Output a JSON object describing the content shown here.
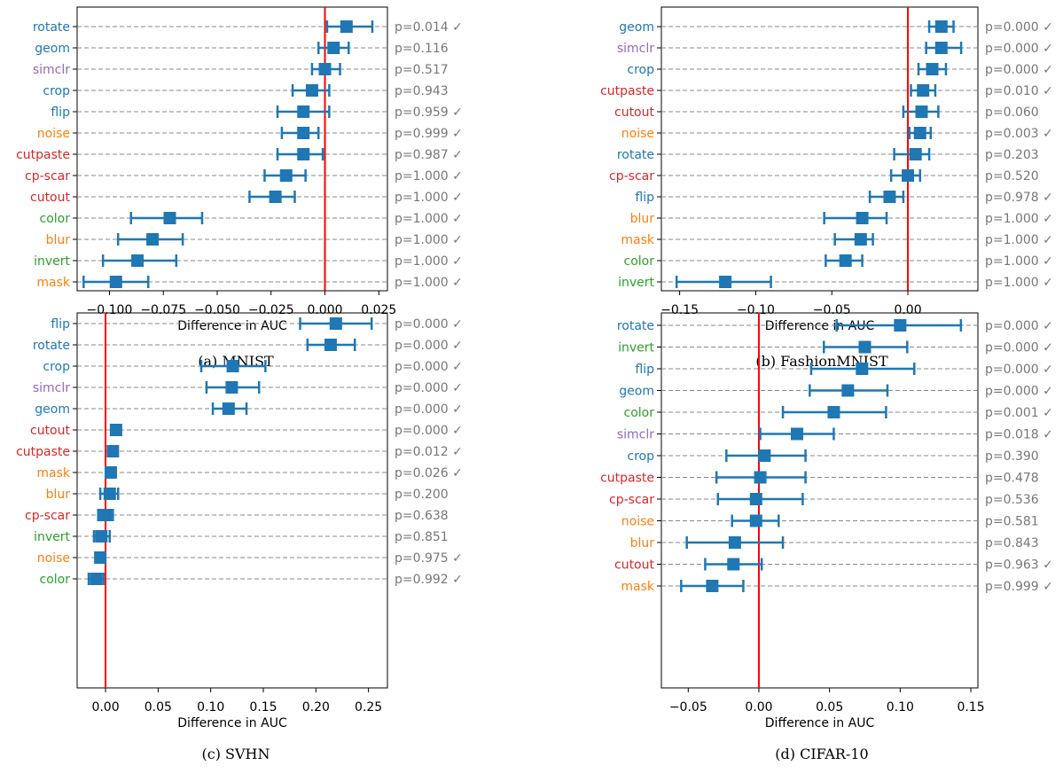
{
  "colors": {
    "marker": "#1f77b4",
    "zero_line": "#ff0000",
    "guide": "#888888",
    "geometric": "#1f77b4",
    "photometric": "#2ca02c",
    "local": "#d62728",
    "noise_like": "#ff7f0e",
    "contrastive": "#9467bd",
    "pvalue_text": "#777777"
  },
  "chart_data": [
    {
      "type": "errorbar",
      "caption": "(a) MNIST",
      "xlabel": "Difference in AUC",
      "xlim": [
        -0.115,
        0.029
      ],
      "xticks": [
        -0.1,
        -0.075,
        -0.05,
        -0.025,
        0.0,
        0.025
      ],
      "xtick_labels": [
        "−0.100",
        "−0.075",
        "−0.050",
        "−0.025",
        "0.000",
        "0.025"
      ],
      "rows": [
        {
          "label": "rotate",
          "color": "#1f77b4",
          "value": 0.01,
          "low": 0.001,
          "high": 0.022,
          "p": "p=0.014 ✓"
        },
        {
          "label": "geom",
          "color": "#1f77b4",
          "value": 0.004,
          "low": -0.003,
          "high": 0.011,
          "p": "p=0.116"
        },
        {
          "label": "simclr",
          "color": "#9467bd",
          "value": 0.0,
          "low": -0.006,
          "high": 0.007,
          "p": "p=0.517"
        },
        {
          "label": "crop",
          "color": "#1f77b4",
          "value": -0.006,
          "low": -0.015,
          "high": 0.002,
          "p": "p=0.943"
        },
        {
          "label": "flip",
          "color": "#1f77b4",
          "value": -0.01,
          "low": -0.022,
          "high": 0.002,
          "p": "p=0.959 ✓"
        },
        {
          "label": "noise",
          "color": "#ff7f0e",
          "value": -0.01,
          "low": -0.02,
          "high": -0.003,
          "p": "p=0.999 ✓"
        },
        {
          "label": "cutpaste",
          "color": "#d62728",
          "value": -0.01,
          "low": -0.022,
          "high": -0.001,
          "p": "p=0.987 ✓"
        },
        {
          "label": "cp-scar",
          "color": "#d62728",
          "value": -0.018,
          "low": -0.028,
          "high": -0.009,
          "p": "p=1.000 ✓"
        },
        {
          "label": "cutout",
          "color": "#d62728",
          "value": -0.023,
          "low": -0.035,
          "high": -0.014,
          "p": "p=1.000 ✓"
        },
        {
          "label": "color",
          "color": "#2ca02c",
          "value": -0.072,
          "low": -0.09,
          "high": -0.057,
          "p": "p=1.000 ✓"
        },
        {
          "label": "blur",
          "color": "#ff7f0e",
          "value": -0.08,
          "low": -0.096,
          "high": -0.066,
          "p": "p=1.000 ✓"
        },
        {
          "label": "invert",
          "color": "#2ca02c",
          "value": -0.087,
          "low": -0.103,
          "high": -0.069,
          "p": "p=1.000 ✓"
        },
        {
          "label": "mask",
          "color": "#ff7f0e",
          "value": -0.097,
          "low": -0.112,
          "high": -0.082,
          "p": "p=1.000 ✓"
        }
      ]
    },
    {
      "type": "errorbar",
      "caption": "(b) FashionMNIST",
      "xlabel": "Difference in AUC",
      "xlim": [
        -0.162,
        0.046
      ],
      "xticks": [
        -0.15,
        -0.1,
        -0.05,
        0.0
      ],
      "xtick_labels": [
        "−0.15",
        "−0.10",
        "−0.05",
        "0.00"
      ],
      "rows": [
        {
          "label": "geom",
          "color": "#1f77b4",
          "value": 0.022,
          "low": 0.014,
          "high": 0.03,
          "p": "p=0.000 ✓"
        },
        {
          "label": "simclr",
          "color": "#9467bd",
          "value": 0.022,
          "low": 0.012,
          "high": 0.035,
          "p": "p=0.000 ✓"
        },
        {
          "label": "crop",
          "color": "#1f77b4",
          "value": 0.016,
          "low": 0.007,
          "high": 0.025,
          "p": "p=0.000 ✓"
        },
        {
          "label": "cutpaste",
          "color": "#d62728",
          "value": 0.01,
          "low": 0.002,
          "high": 0.018,
          "p": "p=0.010 ✓"
        },
        {
          "label": "cutout",
          "color": "#d62728",
          "value": 0.009,
          "low": -0.003,
          "high": 0.02,
          "p": "p=0.060"
        },
        {
          "label": "noise",
          "color": "#ff7f0e",
          "value": 0.008,
          "low": 0.001,
          "high": 0.015,
          "p": "p=0.003 ✓"
        },
        {
          "label": "rotate",
          "color": "#1f77b4",
          "value": 0.005,
          "low": -0.009,
          "high": 0.014,
          "p": "p=0.203"
        },
        {
          "label": "cp-scar",
          "color": "#d62728",
          "value": 0.0,
          "low": -0.011,
          "high": 0.008,
          "p": "p=0.520"
        },
        {
          "label": "flip",
          "color": "#1f77b4",
          "value": -0.012,
          "low": -0.025,
          "high": -0.003,
          "p": "p=0.978 ✓"
        },
        {
          "label": "blur",
          "color": "#ff7f0e",
          "value": -0.03,
          "low": -0.055,
          "high": -0.014,
          "p": "p=1.000 ✓"
        },
        {
          "label": "mask",
          "color": "#ff7f0e",
          "value": -0.031,
          "low": -0.048,
          "high": -0.023,
          "p": "p=1.000 ✓"
        },
        {
          "label": "color",
          "color": "#2ca02c",
          "value": -0.041,
          "low": -0.054,
          "high": -0.03,
          "p": "p=1.000 ✓"
        },
        {
          "label": "invert",
          "color": "#2ca02c",
          "value": -0.12,
          "low": -0.152,
          "high": -0.09,
          "p": "p=1.000 ✓"
        }
      ]
    },
    {
      "type": "errorbar",
      "caption": "(c) SVHN",
      "xlabel": "Difference in AUC",
      "xlim": [
        -0.027,
        0.268
      ],
      "xticks": [
        0.0,
        0.05,
        0.1,
        0.15,
        0.2,
        0.25
      ],
      "xtick_labels": [
        "0.00",
        "0.05",
        "0.10",
        "0.15",
        "0.20",
        "0.25"
      ],
      "rows": [
        {
          "label": "flip",
          "color": "#1f77b4",
          "value": 0.219,
          "low": 0.185,
          "high": 0.253,
          "p": "p=0.000 ✓"
        },
        {
          "label": "rotate",
          "color": "#1f77b4",
          "value": 0.214,
          "low": 0.192,
          "high": 0.237,
          "p": "p=0.000 ✓"
        },
        {
          "label": "crop",
          "color": "#1f77b4",
          "value": 0.121,
          "low": 0.091,
          "high": 0.152,
          "p": "p=0.000 ✓"
        },
        {
          "label": "simclr",
          "color": "#9467bd",
          "value": 0.12,
          "low": 0.096,
          "high": 0.146,
          "p": "p=0.000 ✓"
        },
        {
          "label": "geom",
          "color": "#1f77b4",
          "value": 0.117,
          "low": 0.102,
          "high": 0.134,
          "p": "p=0.000 ✓"
        },
        {
          "label": "cutout",
          "color": "#d62728",
          "value": 0.01,
          "low": 0.007,
          "high": 0.013,
          "p": "p=0.000 ✓"
        },
        {
          "label": "cutpaste",
          "color": "#d62728",
          "value": 0.007,
          "low": 0.003,
          "high": 0.011,
          "p": "p=0.012 ✓"
        },
        {
          "label": "mask",
          "color": "#ff7f0e",
          "value": 0.005,
          "low": 0.001,
          "high": 0.009,
          "p": "p=0.026 ✓"
        },
        {
          "label": "blur",
          "color": "#ff7f0e",
          "value": 0.004,
          "low": -0.005,
          "high": 0.012,
          "p": "p=0.200"
        },
        {
          "label": "cp-scar",
          "color": "#d62728",
          "value": 0.0,
          "low": -0.007,
          "high": 0.007,
          "p": "p=0.638"
        },
        {
          "label": "invert",
          "color": "#2ca02c",
          "value": -0.004,
          "low": -0.011,
          "high": 0.004,
          "p": "p=0.851"
        },
        {
          "label": "noise",
          "color": "#ff7f0e",
          "value": -0.005,
          "low": -0.008,
          "high": -0.002,
          "p": "p=0.975 ✓"
        },
        {
          "label": "color",
          "color": "#2ca02c",
          "value": -0.009,
          "low": -0.016,
          "high": -0.002,
          "p": "p=0.992 ✓"
        }
      ]
    },
    {
      "type": "errorbar",
      "caption": "(d) CIFAR-10",
      "xlabel": "Difference in AUC",
      "xlim": [
        -0.069,
        0.155
      ],
      "xticks": [
        -0.05,
        0.0,
        0.05,
        0.1,
        0.15
      ],
      "xtick_labels": [
        "−0.05",
        "0.00",
        "0.05",
        "0.10",
        "0.15"
      ],
      "rows": [
        {
          "label": "rotate",
          "color": "#1f77b4",
          "value": 0.1,
          "low": 0.055,
          "high": 0.143,
          "p": "p=0.000 ✓"
        },
        {
          "label": "invert",
          "color": "#2ca02c",
          "value": 0.075,
          "low": 0.046,
          "high": 0.105,
          "p": "p=0.000 ✓"
        },
        {
          "label": "flip",
          "color": "#1f77b4",
          "value": 0.073,
          "low": 0.037,
          "high": 0.11,
          "p": "p=0.000 ✓"
        },
        {
          "label": "geom",
          "color": "#1f77b4",
          "value": 0.063,
          "low": 0.036,
          "high": 0.091,
          "p": "p=0.000 ✓"
        },
        {
          "label": "color",
          "color": "#2ca02c",
          "value": 0.053,
          "low": 0.017,
          "high": 0.09,
          "p": "p=0.001 ✓"
        },
        {
          "label": "simclr",
          "color": "#9467bd",
          "value": 0.027,
          "low": 0.001,
          "high": 0.053,
          "p": "p=0.018 ✓"
        },
        {
          "label": "crop",
          "color": "#1f77b4",
          "value": 0.004,
          "low": -0.023,
          "high": 0.033,
          "p": "p=0.390"
        },
        {
          "label": "cutpaste",
          "color": "#d62728",
          "value": 0.001,
          "low": -0.03,
          "high": 0.033,
          "p": "p=0.478"
        },
        {
          "label": "cp-scar",
          "color": "#d62728",
          "value": -0.002,
          "low": -0.029,
          "high": 0.031,
          "p": "p=0.536"
        },
        {
          "label": "noise",
          "color": "#ff7f0e",
          "value": -0.002,
          "low": -0.019,
          "high": 0.014,
          "p": "p=0.581"
        },
        {
          "label": "blur",
          "color": "#ff7f0e",
          "value": -0.017,
          "low": -0.051,
          "high": 0.017,
          "p": "p=0.843"
        },
        {
          "label": "cutout",
          "color": "#d62728",
          "value": -0.018,
          "low": -0.038,
          "high": 0.002,
          "p": "p=0.963 ✓"
        },
        {
          "label": "mask",
          "color": "#ff7f0e",
          "value": -0.033,
          "low": -0.055,
          "high": -0.011,
          "p": "p=0.999 ✓"
        }
      ]
    }
  ]
}
